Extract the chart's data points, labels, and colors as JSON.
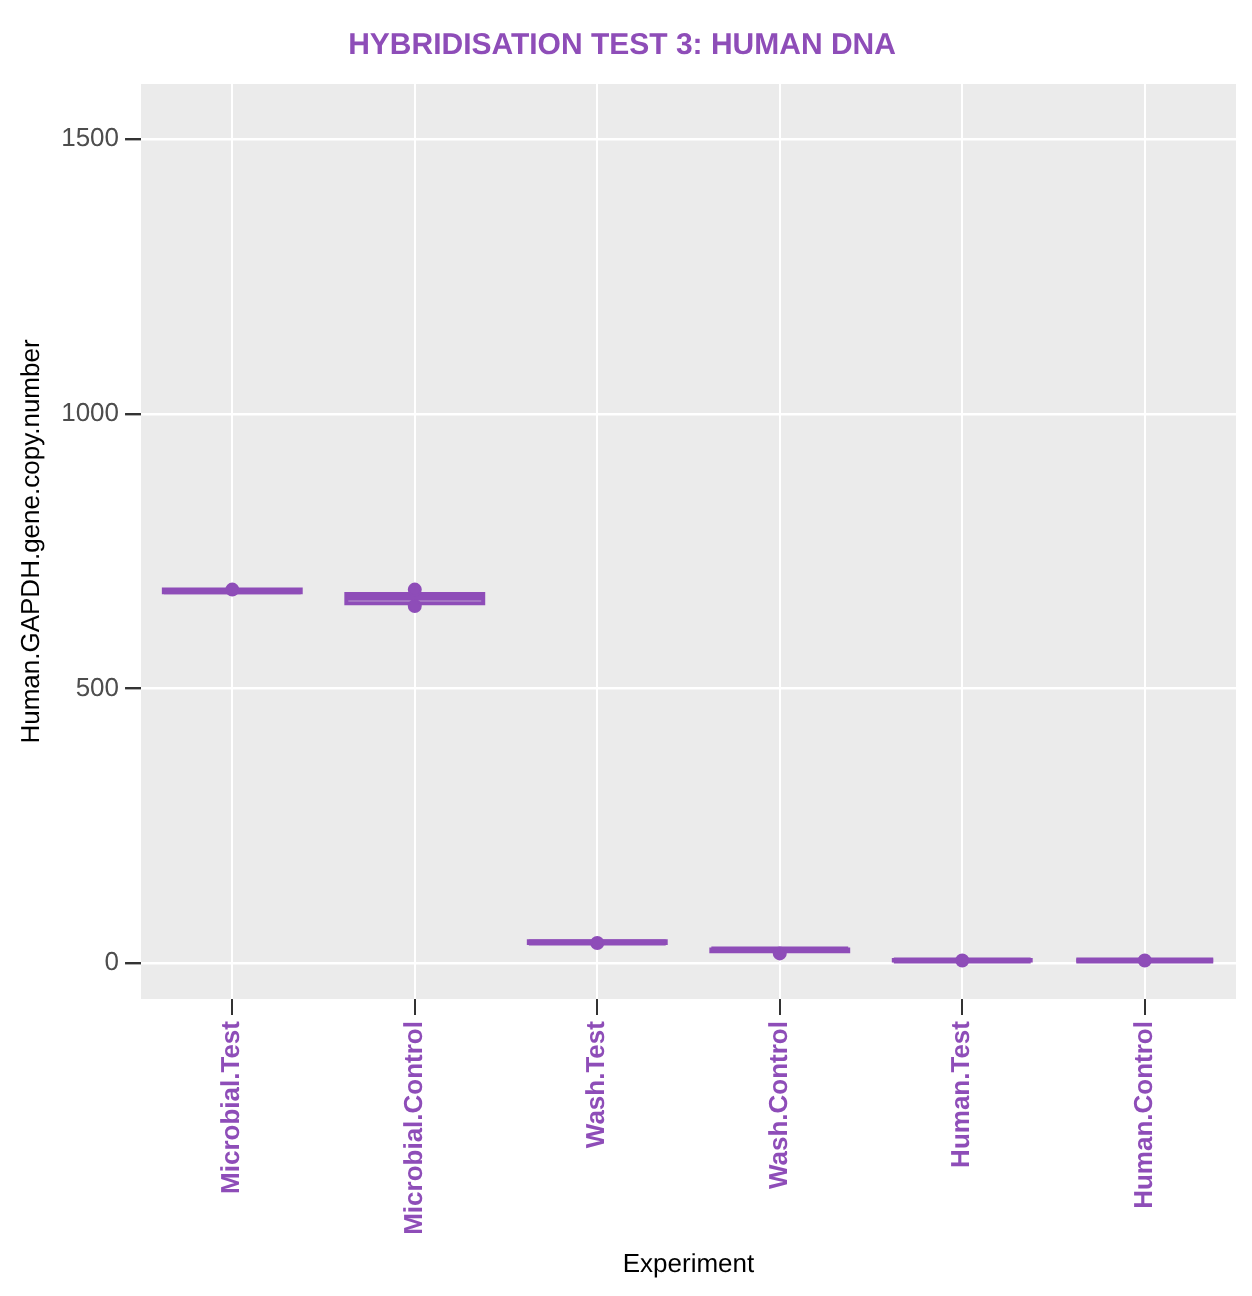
{
  "chart_data": {
    "type": "box",
    "title": "HYBRIDISATION TEST 3: HUMAN DNA",
    "xlabel": "Experiment",
    "ylabel": "Human.GAPDH.gene.copy.number",
    "categories": [
      "Microbial.Test",
      "Microbial.Control",
      "Wash.Test",
      "Wash.Control",
      "Human.Test",
      "Human.Control"
    ],
    "ylim": [
      -65,
      1600
    ],
    "yticks": [
      0,
      500,
      1000,
      1500
    ],
    "grid": true,
    "legend": false,
    "series": [
      {
        "type": "box",
        "color": "#8e4db8",
        "boxes": [
          {
            "low": 674,
            "q1": 675,
            "median": 677,
            "q3": 680,
            "high": 680
          },
          {
            "low": 650,
            "q1": 655,
            "median": 665,
            "q3": 672,
            "high": 680
          },
          {
            "low": 36,
            "q1": 37,
            "median": 38,
            "q3": 40,
            "high": 40
          },
          {
            "low": 18,
            "q1": 22,
            "median": 25,
            "q3": 25,
            "high": 25
          },
          {
            "low": 5,
            "q1": 5,
            "median": 5,
            "q3": 6,
            "high": 6
          },
          {
            "low": 5,
            "q1": 5,
            "median": 5,
            "q3": 5,
            "high": 5
          }
        ]
      },
      {
        "type": "scatter",
        "color": "#8e4db8",
        "marker": "circle",
        "x": [
          "Microbial.Test",
          "Microbial.Control",
          "Microbial.Control",
          "Wash.Test",
          "Wash.Control",
          "Human.Test",
          "Human.Control"
        ],
        "values": [
          680,
          680,
          650,
          37,
          18,
          5,
          5
        ]
      }
    ]
  }
}
